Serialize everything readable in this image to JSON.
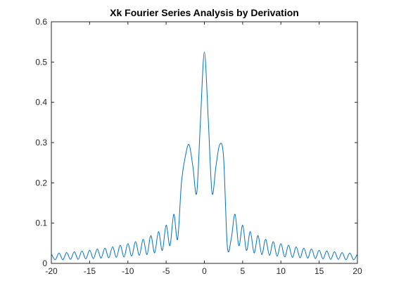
{
  "chart_data": {
    "type": "line",
    "title": "Xk Fourier Series Analysis by Derivation",
    "xlabel": "",
    "ylabel": "",
    "xlim": [
      -20,
      20
    ],
    "ylim": [
      0,
      0.6
    ],
    "x_ticks": [
      -20,
      -15,
      -10,
      -5,
      0,
      5,
      10,
      15,
      20
    ],
    "y_ticks": [
      0,
      0.1,
      0.2,
      0.3,
      0.4,
      0.5,
      0.6
    ],
    "x_tick_labels": [
      "-20",
      "-15",
      "-10",
      "-5",
      "0",
      "5",
      "10",
      "15",
      "20"
    ],
    "y_tick_labels": [
      "0",
      "0.1",
      "0.2",
      "0.3",
      "0.4",
      "0.5",
      "0.6"
    ],
    "grid": false,
    "line_color": "#0072BD",
    "series": [
      {
        "x": [
          -20,
          -19.5,
          -19,
          -18.5,
          -18,
          -17.5,
          -17,
          -16.5,
          -16,
          -15.5,
          -15,
          -14.5,
          -14,
          -13.5,
          -13,
          -12.5,
          -12,
          -11.5,
          -11,
          -10.5,
          -10,
          -9.5,
          -9,
          -8.5,
          -8,
          -7.5,
          -7,
          -6.5,
          -6,
          -5.5,
          -5,
          -4.5,
          -4,
          -3.5,
          -3,
          -2.5,
          -2,
          -1.5,
          -1,
          -0.5,
          0,
          0.5,
          1,
          1.5,
          2,
          2.5,
          3,
          3.5,
          4,
          4.5,
          5,
          5.5,
          6,
          6.5,
          7,
          7.5,
          8,
          8.5,
          9,
          9.5,
          10,
          10.5,
          11,
          11.5,
          12,
          12.5,
          13,
          13.5,
          14,
          14.5,
          15,
          15.5,
          16,
          16.5,
          17,
          17.5,
          18,
          18.5,
          19,
          19.5,
          20
        ],
        "y": [
          0.024,
          0.009,
          0.026,
          0.009,
          0.027,
          0.01,
          0.029,
          0.01,
          0.031,
          0.011,
          0.033,
          0.012,
          0.036,
          0.013,
          0.038,
          0.014,
          0.041,
          0.015,
          0.045,
          0.016,
          0.049,
          0.018,
          0.054,
          0.02,
          0.06,
          0.022,
          0.069,
          0.026,
          0.079,
          0.032,
          0.095,
          0.044,
          0.122,
          0.06,
          0.2,
          0.265,
          0.295,
          0.24,
          0.175,
          0.36,
          0.525,
          0.36,
          0.175,
          0.24,
          0.295,
          0.265,
          0.042,
          0.06,
          0.122,
          0.044,
          0.095,
          0.032,
          0.079,
          0.026,
          0.069,
          0.022,
          0.06,
          0.02,
          0.054,
          0.018,
          0.049,
          0.016,
          0.045,
          0.015,
          0.041,
          0.014,
          0.038,
          0.013,
          0.036,
          0.012,
          0.033,
          0.011,
          0.031,
          0.01,
          0.029,
          0.01,
          0.027,
          0.009,
          0.026,
          0.009,
          0.024
        ]
      }
    ]
  }
}
